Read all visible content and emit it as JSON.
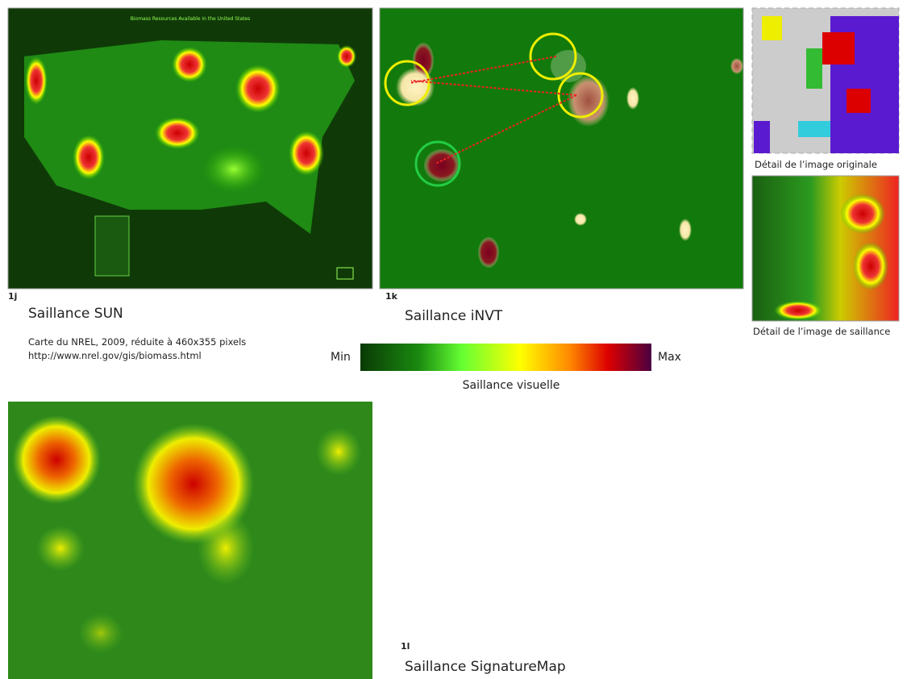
{
  "panels": [
    {
      "id": "1j",
      "title": "Saillance SUN",
      "map_title": "Biomass Resources Available in the United States"
    },
    {
      "id": "1k",
      "title": "Saillance iNVT"
    },
    {
      "id": "1l",
      "title": "Saillance SignatureMap"
    }
  ],
  "source": {
    "line1": "Carte du NREL, 2009, réduite à 460x355 pixels",
    "line2": "http://www.nrel.gov/gis/biomass.html"
  },
  "colorbar": {
    "min": "Min",
    "max": "Max",
    "title": "Saillance visuelle"
  },
  "details": {
    "original": "Détail de l’image originale",
    "saliency": "Détail de l’image de saillance"
  }
}
